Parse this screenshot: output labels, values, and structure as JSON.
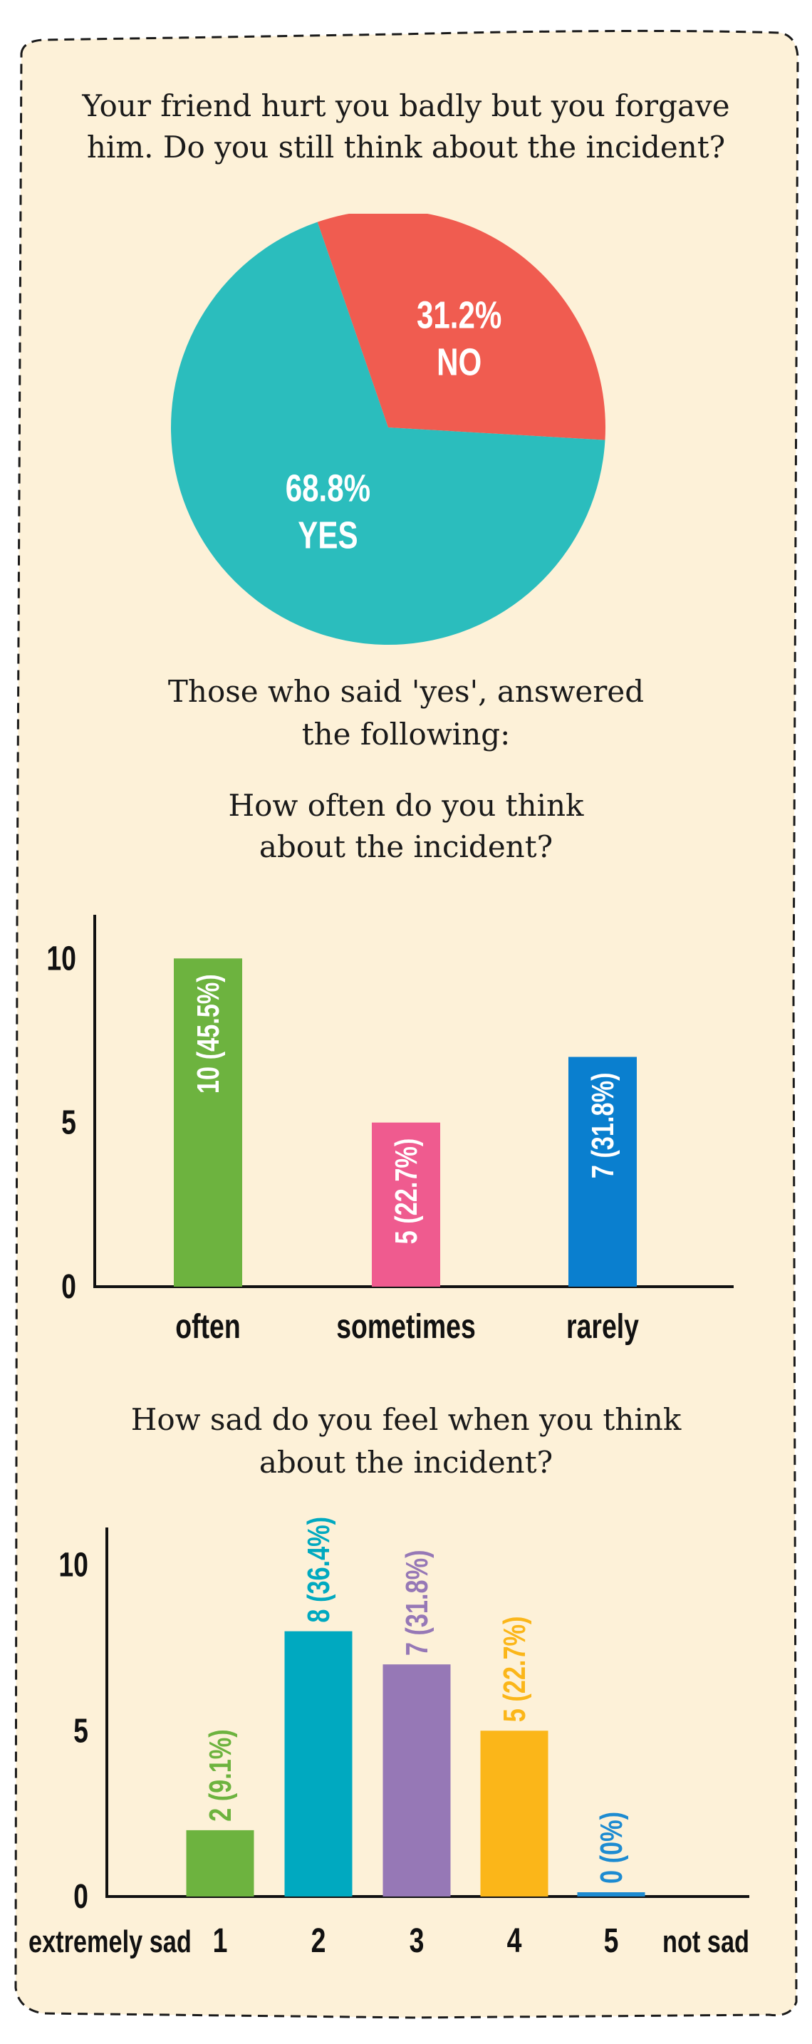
{
  "colors": {
    "background": "#fdf1d8",
    "border": "#1a1a1a",
    "pie_yes": "#2bbdbd",
    "pie_no": "#f05c50",
    "often": "#6db33f",
    "sometimes": "#ef5b8f",
    "rarely": "#0a7fcf",
    "sad_1": "#6db33f",
    "sad_2": "#00a9c0",
    "sad_3": "#9678b6",
    "sad_4": "#fbb619",
    "sad_5": "#1d8bd1",
    "axis": "#111111"
  },
  "question1": {
    "line1": "Your friend hurt you badly but you forgave",
    "line2": "him. Do you still think about the incident?"
  },
  "intro": {
    "line1": "Those who said 'yes', answered",
    "line2": "the following:"
  },
  "question2": {
    "line1": "How often do you think",
    "line2": "about the incident?"
  },
  "question3": {
    "line1": "How sad do you feel when you think",
    "line2": "about the incident?"
  },
  "chart_data": [
    {
      "type": "pie",
      "slices": [
        {
          "pct_label": "31.2%",
          "label": "NO",
          "value": 31.2,
          "color": "#f05c50"
        },
        {
          "pct_label": "68.8%",
          "label": "YES",
          "value": 68.8,
          "color": "#2bbdbd"
        }
      ]
    },
    {
      "type": "bar",
      "categories": [
        "often",
        "sometimes",
        "rarely"
      ],
      "values": [
        10,
        5,
        7
      ],
      "data_labels": [
        "10 (45.5%)",
        "5 (22.7%)",
        "7 (31.8%)"
      ],
      "colors": [
        "#6db33f",
        "#ef5b8f",
        "#0a7fcf"
      ],
      "yticks": [
        "0",
        "5",
        "10"
      ],
      "ylim": [
        0,
        11.2
      ]
    },
    {
      "type": "bar",
      "categories": [
        "1",
        "2",
        "3",
        "4",
        "5"
      ],
      "values": [
        2,
        8,
        7,
        5,
        0
      ],
      "data_labels": [
        "2 (9.1%)",
        "8 (36.4%)",
        "7 (31.8%)",
        "5 (22.7%)",
        "0 (0%)"
      ],
      "colors": [
        "#6db33f",
        "#00a9c0",
        "#9678b6",
        "#fbb619",
        "#1d8bd1"
      ],
      "yticks": [
        "0",
        "5",
        "10"
      ],
      "ylim": [
        0,
        11
      ],
      "scale_left_label": "extremely sad",
      "scale_right_label": "not sad"
    }
  ]
}
